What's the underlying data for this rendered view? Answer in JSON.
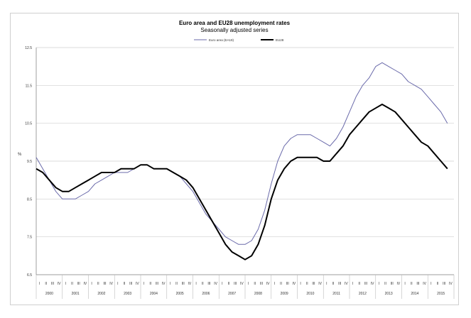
{
  "chart_data": {
    "type": "line",
    "title": "Euro area and EU28 unemployment rates",
    "subtitle": "Seasonally adjusted series",
    "ylabel": "%",
    "xlabel": "",
    "ylim": [
      6.5,
      12.5
    ],
    "yticks": [
      6.5,
      7.5,
      8.5,
      9.5,
      10.5,
      11.5,
      12.5
    ],
    "ytick_labels": [
      "6.5",
      "7.5",
      "8.5",
      "9.5",
      "10.5",
      "11.5",
      "12.5"
    ],
    "x_start": 2000,
    "x_end": 2016,
    "year_labels": [
      "2000",
      "2001",
      "2002",
      "2003",
      "2004",
      "2005",
      "2006",
      "2007",
      "2008",
      "2009",
      "2010",
      "2011",
      "2012",
      "2013",
      "2014",
      "2015"
    ],
    "quarter_labels": [
      "I",
      "II",
      "III",
      "IV"
    ],
    "grid": true,
    "legend_position": "top-center",
    "series": [
      {
        "name": "Euro area (EA19)",
        "color": "#6a6aaa",
        "width": 1,
        "x": [
          2000.0,
          2000.25,
          2000.5,
          2000.75,
          2001.0,
          2001.25,
          2001.5,
          2001.75,
          2002.0,
          2002.25,
          2002.5,
          2002.75,
          2003.0,
          2003.25,
          2003.5,
          2003.75,
          2004.0,
          2004.25,
          2004.5,
          2004.75,
          2005.0,
          2005.25,
          2005.5,
          2005.75,
          2006.0,
          2006.25,
          2006.5,
          2006.75,
          2007.0,
          2007.25,
          2007.5,
          2007.75,
          2008.0,
          2008.25,
          2008.5,
          2008.75,
          2009.0,
          2009.25,
          2009.5,
          2009.75,
          2010.0,
          2010.25,
          2010.5,
          2010.75,
          2011.0,
          2011.25,
          2011.5,
          2011.75,
          2012.0,
          2012.25,
          2012.5,
          2012.75,
          2013.0,
          2013.25,
          2013.5,
          2013.75,
          2014.0,
          2014.25,
          2014.5,
          2014.75,
          2015.0,
          2015.25,
          2015.5,
          2015.75
        ],
        "y": [
          9.6,
          9.3,
          9.0,
          8.7,
          8.5,
          8.5,
          8.5,
          8.6,
          8.7,
          8.9,
          9.0,
          9.1,
          9.2,
          9.2,
          9.2,
          9.3,
          9.4,
          9.4,
          9.3,
          9.3,
          9.3,
          9.2,
          9.1,
          8.9,
          8.7,
          8.4,
          8.1,
          7.9,
          7.7,
          7.5,
          7.4,
          7.3,
          7.3,
          7.4,
          7.7,
          8.2,
          8.9,
          9.5,
          9.9,
          10.1,
          10.2,
          10.2,
          10.2,
          10.1,
          10.0,
          9.9,
          10.1,
          10.4,
          10.8,
          11.2,
          11.5,
          11.7,
          12.0,
          12.1,
          12.0,
          11.9,
          11.8,
          11.6,
          11.5,
          11.4,
          11.2,
          11.0,
          10.8,
          10.5
        ]
      },
      {
        "name": "EU28",
        "color": "#000000",
        "width": 2,
        "x": [
          2000.0,
          2000.25,
          2000.5,
          2000.75,
          2001.0,
          2001.25,
          2001.5,
          2001.75,
          2002.0,
          2002.25,
          2002.5,
          2002.75,
          2003.0,
          2003.25,
          2003.5,
          2003.75,
          2004.0,
          2004.25,
          2004.5,
          2004.75,
          2005.0,
          2005.25,
          2005.5,
          2005.75,
          2006.0,
          2006.25,
          2006.5,
          2006.75,
          2007.0,
          2007.25,
          2007.5,
          2007.75,
          2008.0,
          2008.25,
          2008.5,
          2008.75,
          2009.0,
          2009.25,
          2009.5,
          2009.75,
          2010.0,
          2010.25,
          2010.5,
          2010.75,
          2011.0,
          2011.25,
          2011.5,
          2011.75,
          2012.0,
          2012.25,
          2012.5,
          2012.75,
          2013.0,
          2013.25,
          2013.5,
          2013.75,
          2014.0,
          2014.25,
          2014.5,
          2014.75,
          2015.0,
          2015.25,
          2015.5,
          2015.75
        ],
        "y": [
          9.3,
          9.2,
          9.0,
          8.8,
          8.7,
          8.7,
          8.8,
          8.9,
          9.0,
          9.1,
          9.2,
          9.2,
          9.2,
          9.3,
          9.3,
          9.3,
          9.4,
          9.4,
          9.3,
          9.3,
          9.3,
          9.2,
          9.1,
          9.0,
          8.8,
          8.5,
          8.2,
          7.9,
          7.6,
          7.3,
          7.1,
          7.0,
          6.9,
          7.0,
          7.3,
          7.8,
          8.5,
          9.0,
          9.3,
          9.5,
          9.6,
          9.6,
          9.6,
          9.6,
          9.5,
          9.5,
          9.7,
          9.9,
          10.2,
          10.4,
          10.6,
          10.8,
          10.9,
          11.0,
          10.9,
          10.8,
          10.6,
          10.4,
          10.2,
          10.0,
          9.9,
          9.7,
          9.5,
          9.3
        ]
      }
    ]
  }
}
